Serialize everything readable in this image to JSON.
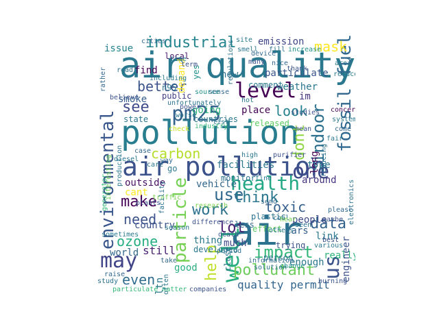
{
  "words": [
    {
      "text": "air quality",
      "color": "#2a788e"
    },
    {
      "text": "pollution",
      "color": "#287d8e"
    },
    {
      "text": "air",
      "color": "#2c728e"
    },
    {
      "text": "air pollution",
      "color": "#3b528b"
    },
    {
      "text": "pm25",
      "color": "#33638d"
    },
    {
      "text": "level",
      "color": "#440154"
    },
    {
      "text": "industrial",
      "color": "#25858e"
    },
    {
      "text": "environmental",
      "color": "#39568c"
    },
    {
      "text": "health",
      "color": "#22a884"
    },
    {
      "text": "particle",
      "color": "#75d054"
    },
    {
      "text": "one",
      "color": "#3e4a89"
    },
    {
      "text": "use",
      "color": "#31688e"
    },
    {
      "text": "may",
      "color": "#414487"
    },
    {
      "text": "well",
      "color": "#29af7f"
    },
    {
      "text": "us",
      "color": "#3b528b"
    },
    {
      "text": "fossil fuel",
      "color": "#31688e"
    },
    {
      "text": "indoor",
      "color": "#2d708e"
    },
    {
      "text": "dont",
      "color": "#8fd744"
    },
    {
      "text": "see",
      "color": "#3e4a89"
    },
    {
      "text": "carbon",
      "color": "#b5de2b"
    },
    {
      "text": "make",
      "color": "#440154"
    },
    {
      "text": "work",
      "color": "#2c728e"
    },
    {
      "text": "think",
      "color": "#2a788e"
    },
    {
      "text": "impact",
      "color": "#35b779"
    },
    {
      "text": "ozone",
      "color": "#27ad81"
    },
    {
      "text": "lot",
      "color": "#481f70"
    },
    {
      "text": "toxic",
      "color": "#355f8d"
    },
    {
      "text": "data",
      "color": "#33638d"
    },
    {
      "text": "pollutant",
      "color": "#6ccd5a"
    },
    {
      "text": "better",
      "color": "#3b528b"
    },
    {
      "text": "mask",
      "color": "#fde725"
    },
    {
      "text": "look",
      "color": "#26818e"
    },
    {
      "text": "need",
      "color": "#3b528b"
    },
    {
      "text": "help",
      "color": "#bddf26"
    },
    {
      "text": "even",
      "color": "#2f6c8e"
    },
    {
      "text": "quality permit",
      "color": "#32658e"
    },
    {
      "text": "facilities",
      "color": "#2a768e"
    },
    {
      "text": "particulate",
      "color": "#39568c"
    },
    {
      "text": "comment",
      "color": "#2a778e"
    },
    {
      "text": "place",
      "color": "#440154"
    },
    {
      "text": "going",
      "color": "#2fb47c"
    },
    {
      "text": "released",
      "color": "#5ec962"
    },
    {
      "text": "smoke",
      "color": "#355e8d"
    },
    {
      "text": "state",
      "color": "#2a788e"
    },
    {
      "text": "find",
      "color": "#440154"
    },
    {
      "text": "issue",
      "color": "#26828e"
    },
    {
      "text": "local",
      "color": "#48186a"
    },
    {
      "text": "new",
      "color": "#2d708e"
    },
    {
      "text": "emission",
      "color": "#404688"
    },
    {
      "text": "weather",
      "color": "#2a788e"
    },
    {
      "text": "im",
      "color": "#46337f"
    },
    {
      "text": "demand",
      "color": "#fde725"
    },
    {
      "text": "yes",
      "color": "#21918c"
    },
    {
      "text": "n95",
      "color": "#2c728e"
    },
    {
      "text": "public",
      "color": "#424086"
    },
    {
      "text": "countries",
      "color": "#2a788e"
    },
    {
      "text": "industry",
      "color": "#35b779"
    },
    {
      "text": "long",
      "color": "#440154"
    },
    {
      "text": "type",
      "color": "#2a788e"
    },
    {
      "text": "around",
      "color": "#46337f"
    },
    {
      "text": "monitor",
      "color": "#2c728e"
    },
    {
      "text": "vehicle",
      "color": "#31688e"
    },
    {
      "text": "outside",
      "color": "#471063"
    },
    {
      "text": "cant",
      "color": "#fde725"
    },
    {
      "text": "go",
      "color": "#2a788e"
    },
    {
      "text": "people",
      "color": "#3e4a89"
    },
    {
      "text": "link",
      "color": "#2a788e"
    },
    {
      "text": "cars",
      "color": "#355f8d"
    },
    {
      "text": "effect",
      "color": "#5ec962"
    },
    {
      "text": "plastic",
      "color": "#2c728e"
    },
    {
      "text": "country",
      "color": "#3b528b"
    },
    {
      "text": "thing",
      "color": "#2a788e"
    },
    {
      "text": "world",
      "color": "#31688e"
    },
    {
      "text": "still",
      "color": "#481f70"
    },
    {
      "text": "good",
      "color": "#29af7f"
    },
    {
      "text": "much",
      "color": "#3e4a89"
    },
    {
      "text": "enough",
      "color": "#2a788e"
    },
    {
      "text": "really",
      "color": "#2fb47c"
    },
    {
      "text": "engineer",
      "color": "#3b528b"
    },
    {
      "text": "ltn",
      "color": "#2a788e"
    },
    {
      "text": "close",
      "color": "#2c728e"
    },
    {
      "text": "person",
      "color": "#2a788e"
    },
    {
      "text": "less",
      "color": "#31688e"
    },
    {
      "text": "developed",
      "color": "#2a788e"
    },
    {
      "text": "trying",
      "color": "#3b528b"
    },
    {
      "text": "research",
      "color": "#7ad151"
    },
    {
      "text": "coal",
      "color": "#2c728e"
    },
    {
      "text": "death",
      "color": "#3b528b"
    },
    {
      "text": "take",
      "color": "#31688e"
    },
    {
      "text": "fine",
      "color": "#2a788e"
    },
    {
      "text": "site",
      "color": "#2a788e"
    },
    {
      "text": "cities",
      "color": "#31688e"
    },
    {
      "text": "smell",
      "color": "#2a788e"
    },
    {
      "text": "fill",
      "color": "#2c728e"
    },
    {
      "text": "increase",
      "color": "#21918c"
    },
    {
      "text": "many",
      "color": "#3b528b"
    },
    {
      "text": "nice",
      "color": "#31688e"
    },
    {
      "text": "thank",
      "color": "#3b528b"
    },
    {
      "text": "area",
      "color": "#2a788e"
    },
    {
      "text": "road",
      "color": "#2c728e"
    },
    {
      "text": "time",
      "color": "#2a788e"
    },
    {
      "text": "term",
      "color": "#3b528b"
    },
    {
      "text": "including",
      "color": "#2a788e"
    },
    {
      "text": "unfortunately",
      "color": "#2c728e"
    },
    {
      "text": "rather",
      "color": "#31688e"
    },
    {
      "text": "believe",
      "color": "#3b528b"
    },
    {
      "text": "worse",
      "color": "#2a788e"
    },
    {
      "text": "source",
      "color": "#21918c"
    },
    {
      "text": "sense",
      "color": "#31688e"
    },
    {
      "text": "regulations",
      "color": "#2c728e"
    },
    {
      "text": "hot",
      "color": "#2a788e"
    },
    {
      "text": "studies",
      "color": "#3b528b"
    },
    {
      "text": "concern",
      "color": "#440154"
    },
    {
      "text": "system",
      "color": "#2a788e"
    },
    {
      "text": "come",
      "color": "#31688e"
    },
    {
      "text": "fair",
      "color": "#2a788e"
    },
    {
      "text": "reducing",
      "color": "#2c728e"
    },
    {
      "text": "mean",
      "color": "#3b528b"
    },
    {
      "text": "list",
      "color": "#2a788e"
    },
    {
      "text": "check",
      "color": "#c8e020"
    },
    {
      "text": "power",
      "color": "#3b528b"
    },
    {
      "text": "case",
      "color": "#31688e"
    },
    {
      "text": "diesel",
      "color": "#2a788e"
    },
    {
      "text": "care",
      "color": "#2c728e"
    },
    {
      "text": "purifier",
      "color": "#3b528b"
    },
    {
      "text": "high",
      "color": "#2a788e"
    },
    {
      "text": "way",
      "color": "#31688e"
    },
    {
      "text": "generator",
      "color": "#35b779"
    },
    {
      "text": "interesting",
      "color": "#6ccd5a"
    },
    {
      "text": "production",
      "color": "#2a788e"
    },
    {
      "text": "plants",
      "color": "#3b528b"
    },
    {
      "text": "traffic",
      "color": "#7ad151"
    },
    {
      "text": "facility",
      "color": "#2c728e"
    },
    {
      "text": "season",
      "color": "#2a788e"
    },
    {
      "text": "difference",
      "color": "#3b528b"
    },
    {
      "text": "send",
      "color": "#31688e"
    },
    {
      "text": "seen",
      "color": "#2c728e"
    },
    {
      "text": "hear",
      "color": "#7ad151"
    },
    {
      "text": "others",
      "color": "#2a788e"
    },
    {
      "text": "best",
      "color": "#3b528b"
    },
    {
      "text": "various",
      "color": "#2a788e"
    },
    {
      "text": "please",
      "color": "#31688e"
    },
    {
      "text": "electronics",
      "color": "#2c728e"
    },
    {
      "text": "maybe",
      "color": "#3b528b"
    },
    {
      "text": "sometimes",
      "color": "#2a788e"
    },
    {
      "text": "raise",
      "color": "#31688e"
    },
    {
      "text": "study",
      "color": "#2c728e"
    },
    {
      "text": "particulate matter",
      "color": "#35b779"
    },
    {
      "text": "companies",
      "color": "#3b528b"
    },
    {
      "text": "often",
      "color": "#2a788e"
    },
    {
      "text": "information",
      "color": "#31688e"
    },
    {
      "text": "solution",
      "color": "#2c728e"
    },
    {
      "text": "change",
      "color": "#21918c"
    },
    {
      "text": "burning",
      "color": "#3b528b"
    },
    {
      "text": "reduce",
      "color": "#2a788e"
    },
    {
      "text": "device",
      "color": "#31688e"
    },
    {
      "text": "period",
      "color": "#2c728e"
    }
  ]
}
